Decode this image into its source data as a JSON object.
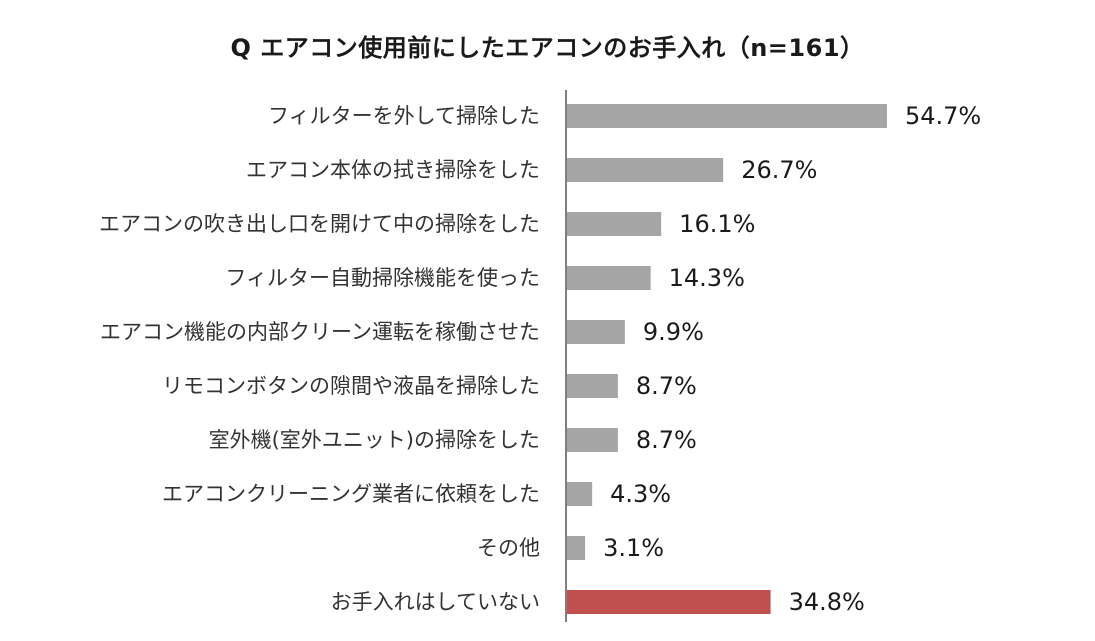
{
  "chart_data": {
    "type": "bar",
    "orientation": "horizontal",
    "title": "Q エアコン使用前にしたエアコンのお手入れ（n=161）",
    "categories": [
      "フィルターを外して掃除した",
      "エアコン本体の拭き掃除をした",
      "エアコンの吹き出し口を開けて中の掃除をした",
      "フィルター自動掃除機能を使った",
      "エアコン機能の内部クリーン運転を稼働させた",
      "リモコンボタンの隙間や液晶を掃除した",
      "室外機(室外ユニット)の掃除をした",
      "エアコンクリーニング業者に依頼をした",
      "その他",
      "お手入れはしていない"
    ],
    "values": [
      54.7,
      26.7,
      16.1,
      14.3,
      9.9,
      8.7,
      8.7,
      4.3,
      3.1,
      34.8
    ],
    "value_labels": [
      "54.7%",
      "26.7%",
      "16.1%",
      "14.3%",
      "9.9%",
      "8.7%",
      "8.7%",
      "4.3%",
      "3.1%",
      "34.8%"
    ],
    "bar_colors": [
      "#a6a6a6",
      "#a6a6a6",
      "#a6a6a6",
      "#a6a6a6",
      "#a6a6a6",
      "#a6a6a6",
      "#a6a6a6",
      "#a6a6a6",
      "#a6a6a6",
      "#c0504d"
    ],
    "axis_color": "#7f7f7f",
    "xlim": [
      0,
      100
    ],
    "grid": false,
    "legend": "none"
  }
}
